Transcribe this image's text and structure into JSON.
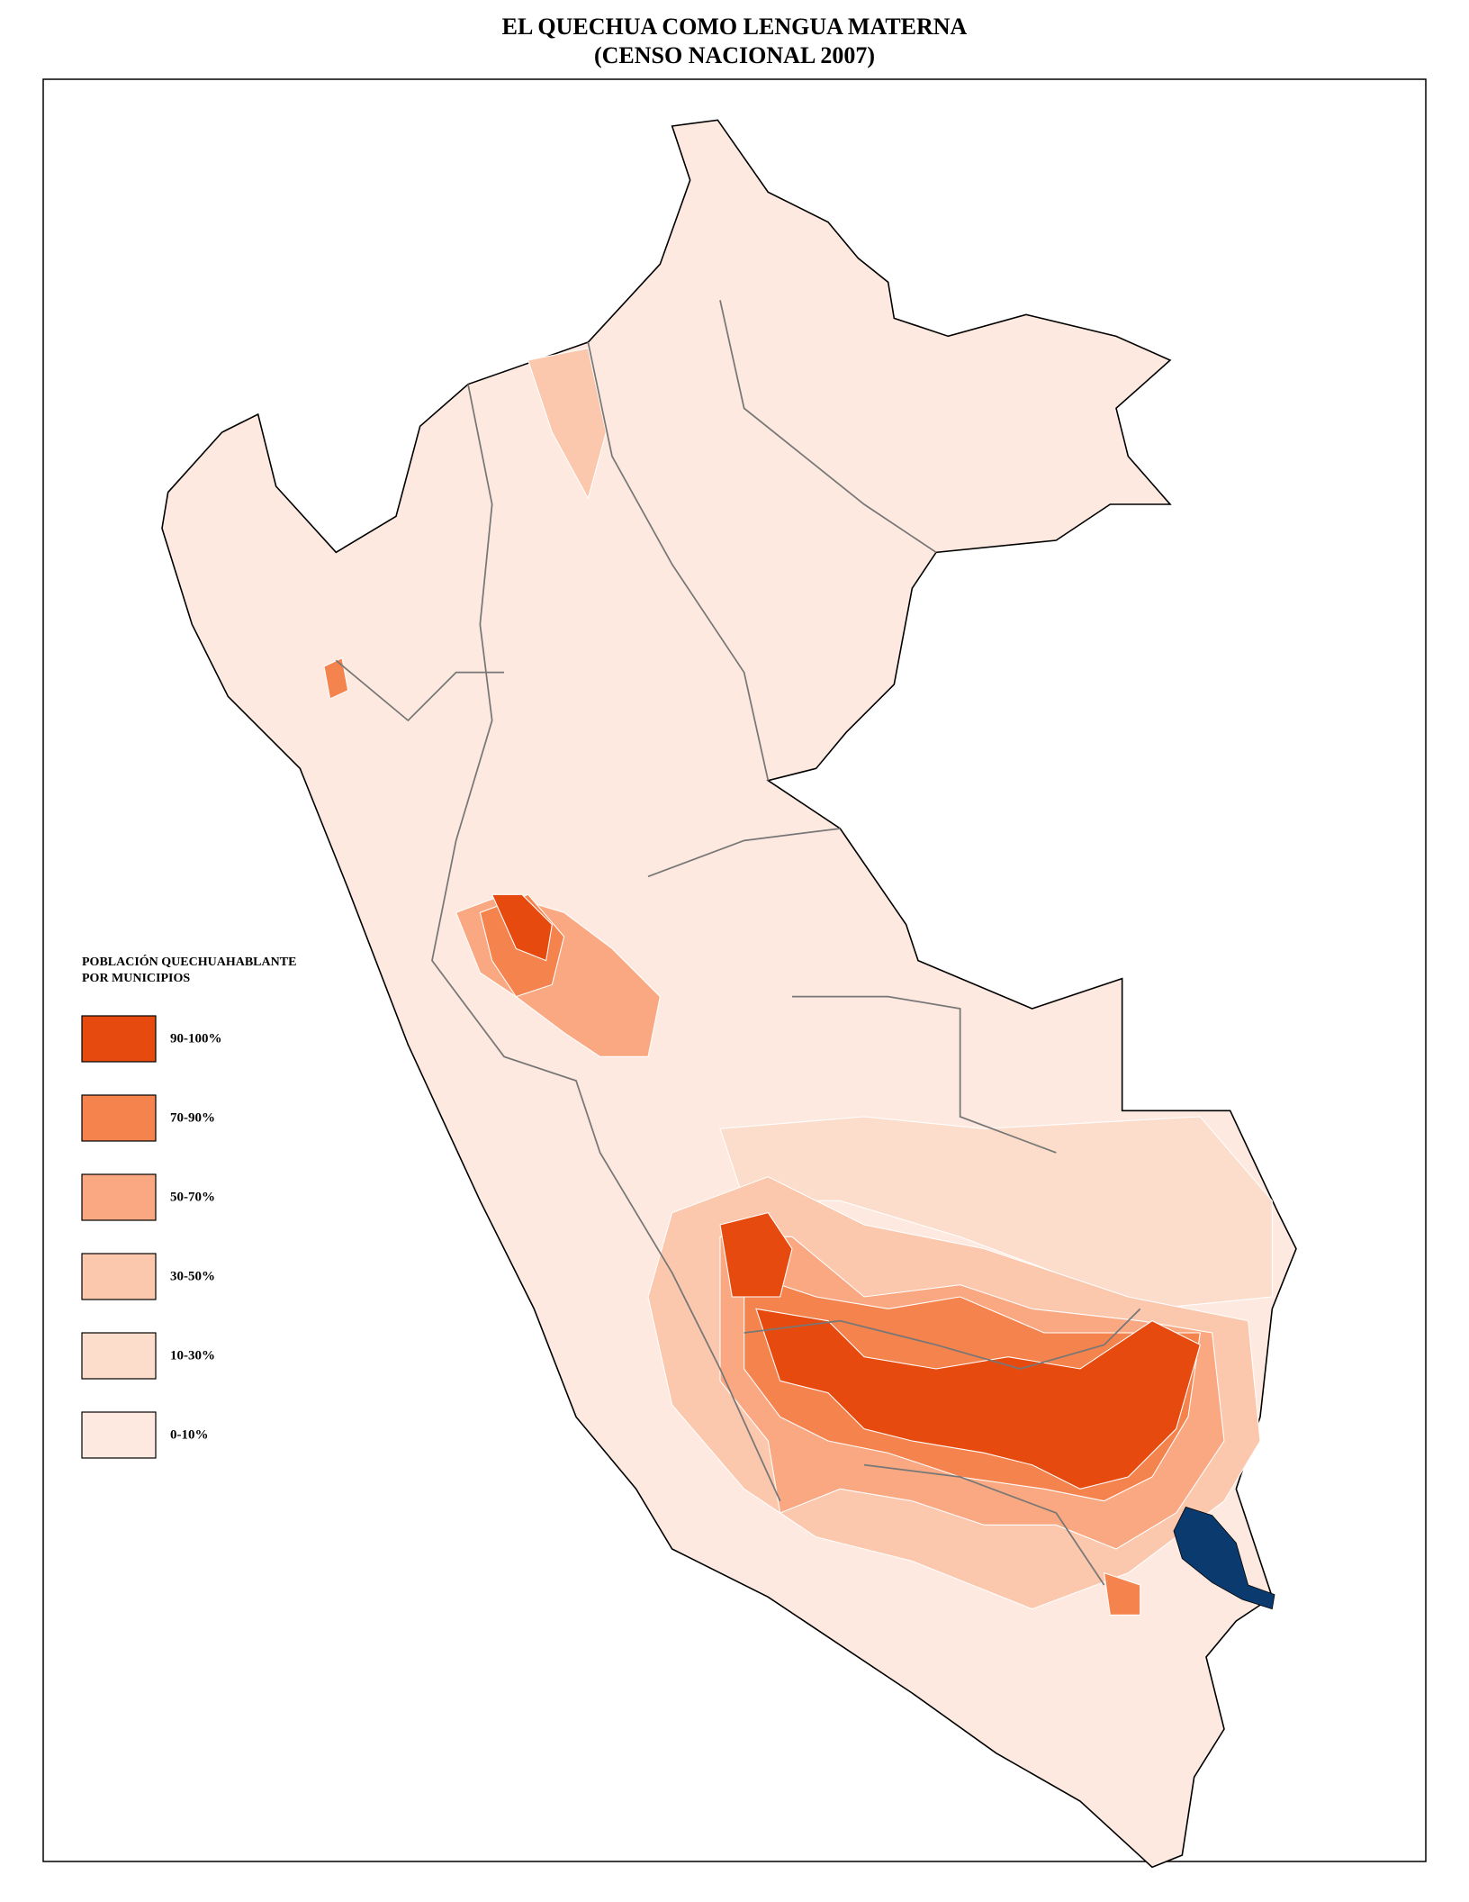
{
  "title": [
    "EL QUECHUA COMO LENGUA MATERNA",
    "(CENSO NACIONAL 2007)"
  ],
  "legend": {
    "title": [
      "POBLACIÓN QUECHUAHABLANTE",
      "POR MUNICIPIOS"
    ],
    "items": [
      {
        "label": "90-100%",
        "color": "#e64a0f"
      },
      {
        "label": "70-90%",
        "color": "#f5834d"
      },
      {
        "label": "50-70%",
        "color": "#f9a882"
      },
      {
        "label": "30-50%",
        "color": "#fbc7ad"
      },
      {
        "label": "10-30%",
        "color": "#fcdcca"
      },
      {
        "label": "0-10%",
        "color": "#fde9df"
      }
    ]
  },
  "lake_color": "#0b3a6e"
}
